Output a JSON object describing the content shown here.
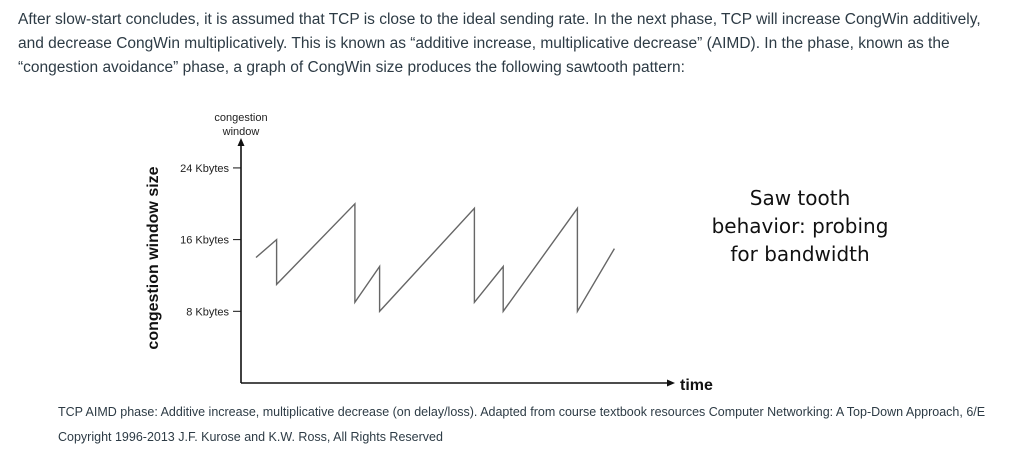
{
  "intro_text": "After slow-start concludes, it is assumed that TCP is close to the ideal sending rate. In the next phase, TCP will increase CongWin additively, and decrease CongWin multiplicatively. This is known as “additive increase, multiplicative decrease” (AIMD). In the phase, known as the “congestion avoidance” phase, a graph of CongWin size produces the following sawtooth pattern:",
  "chart_data": {
    "type": "line",
    "ylabel_top_line1": "congestion",
    "ylabel_top_line2": "window",
    "ylabel_side": "congestion window size",
    "xlabel": "time",
    "y_ticks": [
      {
        "value": 24,
        "label": "24 Kbytes"
      },
      {
        "value": 16,
        "label": "16 Kbytes"
      },
      {
        "value": 8,
        "label": "8 Kbytes"
      }
    ],
    "ylim": [
      0,
      26
    ],
    "xlim": [
      0,
      100
    ],
    "series": [
      {
        "x": [
          0,
          5,
          5,
          24,
          24,
          30,
          30,
          53,
          53,
          60,
          60,
          78,
          78,
          87
        ],
        "y": [
          14,
          16,
          11,
          20,
          9,
          13,
          8,
          19.5,
          9,
          13,
          8,
          19.5,
          8,
          15
        ]
      }
    ],
    "annotation_lines": [
      "Saw tooth",
      "behavior: probing",
      "for bandwidth"
    ]
  },
  "caption_text": "TCP AIMD phase: Additive increase, multiplicative decrease (on delay/loss). Adapted from course textbook resources Computer Networking: A Top-Down Approach, 6/E Copyright 1996-2013 J.F. Kurose and K.W. Ross, All Rights Reserved"
}
